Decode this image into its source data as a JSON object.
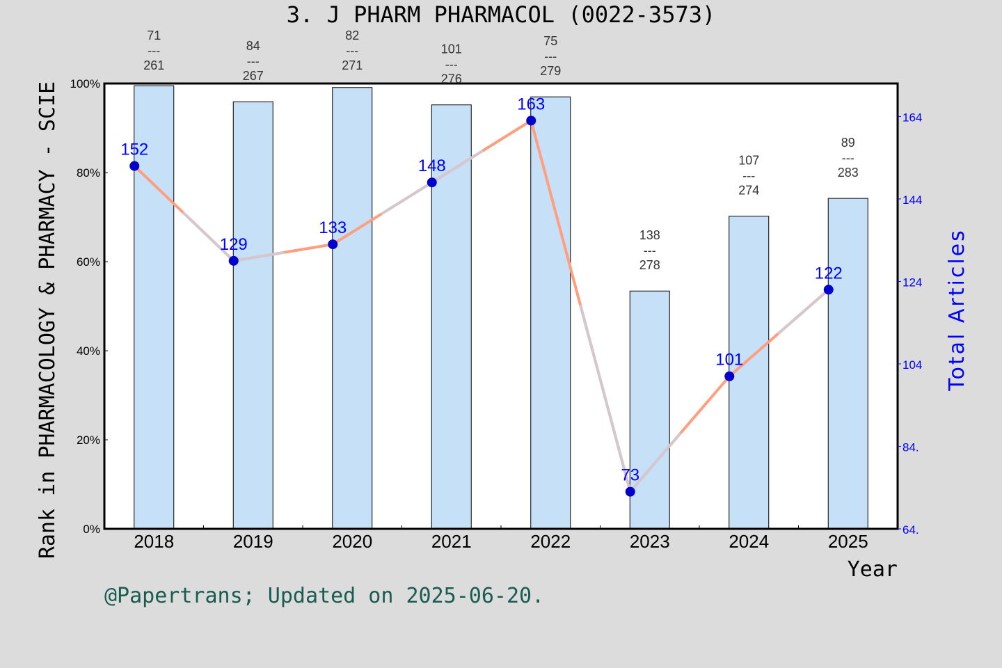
{
  "chart_data": {
    "type": "bar+line",
    "title": "3. J PHARM PHARMACOL (0022-3573)",
    "xlabel": "Year",
    "ylabel": "Rank in PHARMACOLOGY & PHARMACY - SCIE",
    "y2label": "Total Articles",
    "categories": [
      "2018",
      "2019",
      "2020",
      "2021",
      "2022",
      "2023",
      "2024",
      "2025"
    ],
    "ylim": [
      0,
      100
    ],
    "yticks": [
      "0%",
      "20%",
      "40%",
      "60%",
      "80%",
      "100%"
    ],
    "y2lim": [
      64,
      172
    ],
    "y2ticks": [
      "64.",
      "84.",
      "104",
      "124",
      "144",
      "164"
    ],
    "bars": {
      "values": [
        99.5,
        95.9,
        99.1,
        95.2,
        97.0,
        53.4,
        70.2,
        74.2
      ],
      "rank_labels": [
        {
          "rank": "71",
          "total": "261"
        },
        {
          "rank": "84",
          "total": "267"
        },
        {
          "rank": "82",
          "total": "271"
        },
        {
          "rank": "101",
          "total": "276"
        },
        {
          "rank": "75",
          "total": "279"
        },
        {
          "rank": "138",
          "total": "278"
        },
        {
          "rank": "107",
          "total": "274"
        },
        {
          "rank": "89",
          "total": "283"
        }
      ],
      "separator": "---",
      "color": "#c5e0f7"
    },
    "line": {
      "values": [
        152,
        129,
        133,
        148,
        163,
        73,
        101,
        122
      ],
      "color": "#ff9f7f",
      "marker_color": "#0000cc",
      "label_color": "#0000ff"
    },
    "grid": false,
    "legend": "none"
  },
  "footer": "@Papertrans; Updated on 2025-06-20."
}
